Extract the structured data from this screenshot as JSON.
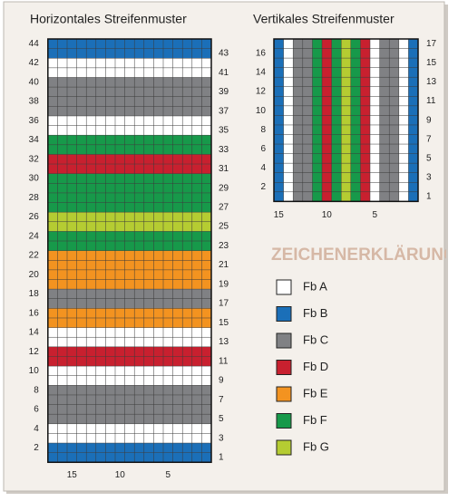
{
  "horizontal": {
    "title": "Horizontales Streifenmuster",
    "row_numbers": [
      1,
      2,
      3,
      4,
      5,
      6,
      7,
      8,
      9,
      10,
      11,
      12,
      13,
      14,
      15,
      16,
      17,
      18,
      19,
      20,
      21,
      22,
      23,
      24,
      25,
      26,
      27,
      28,
      29,
      30,
      31,
      32,
      33,
      34,
      35,
      36,
      37,
      38,
      39,
      40,
      41,
      42,
      43,
      44
    ],
    "row_colors": [
      "B",
      "B",
      "A",
      "A",
      "C",
      "C",
      "C",
      "C",
      "A",
      "A",
      "D",
      "D",
      "A",
      "A",
      "E",
      "E",
      "C",
      "C",
      "E",
      "E",
      "E",
      "E",
      "F",
      "F",
      "G",
      "G",
      "F",
      "F",
      "F",
      "F",
      "D",
      "D",
      "F",
      "F",
      "A",
      "A",
      "C",
      "C",
      "C",
      "C",
      "A",
      "A",
      "B",
      "B"
    ],
    "column_labels": [
      15,
      10,
      5
    ]
  },
  "vertical": {
    "title": "Vertikales Streifenmuster",
    "row_numbers": [
      1,
      2,
      3,
      4,
      5,
      6,
      7,
      8,
      9,
      10,
      11,
      12,
      13,
      14,
      15,
      16,
      17
    ],
    "column_colors": [
      "B",
      "A",
      "C",
      "C",
      "A",
      "D",
      "F",
      "G",
      "F",
      "D",
      "F",
      "C",
      "C",
      "A",
      "B"
    ],
    "column_labels": [
      15,
      10,
      5
    ]
  },
  "legend": {
    "title": "ZEICHENERKLÄRUNG",
    "items": [
      {
        "key": "A",
        "label": "Fb A",
        "color": "#ffffff"
      },
      {
        "key": "B",
        "label": "Fb B",
        "color": "#1b6fb8"
      },
      {
        "key": "C",
        "label": "Fb C",
        "color": "#808184"
      },
      {
        "key": "D",
        "label": "Fb D",
        "color": "#c8202f"
      },
      {
        "key": "E",
        "label": "Fb E",
        "color": "#f39320"
      },
      {
        "key": "F",
        "label": "Fb F",
        "color": "#17994a"
      },
      {
        "key": "G",
        "label": "Fb G",
        "color": "#b5cc32"
      }
    ]
  }
}
